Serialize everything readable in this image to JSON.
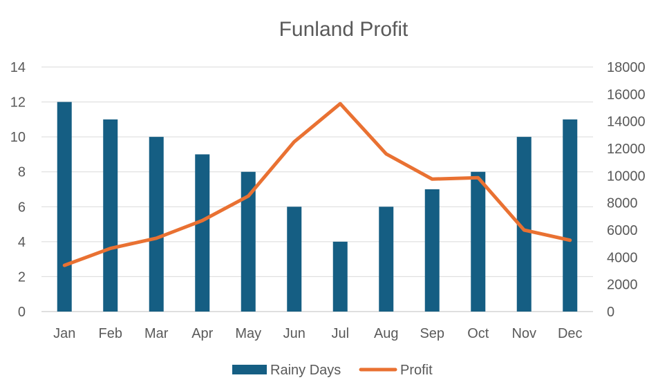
{
  "chart_data": {
    "type": "bar+line",
    "title": "Funland Profit",
    "categories": [
      "Jan",
      "Feb",
      "Mar",
      "Apr",
      "May",
      "Jun",
      "Jul",
      "Aug",
      "Sep",
      "Oct",
      "Nov",
      "Dec"
    ],
    "series": [
      {
        "name": "Rainy Days",
        "type": "bar",
        "axis": "left",
        "color": "#155E83",
        "values": [
          12,
          11,
          10,
          9,
          8,
          6,
          4,
          6,
          7,
          8,
          10,
          11
        ]
      },
      {
        "name": "Profit",
        "type": "line",
        "axis": "right",
        "color": "#E97132",
        "values": [
          3400,
          4650,
          5400,
          6700,
          8500,
          12500,
          15300,
          11600,
          9750,
          9850,
          6000,
          5250
        ]
      }
    ],
    "y_left": {
      "min": 0,
      "max": 14,
      "ticks": [
        0,
        2,
        4,
        6,
        8,
        10,
        12,
        14
      ]
    },
    "y_right": {
      "min": 0,
      "max": 18000,
      "ticks": [
        0,
        2000,
        4000,
        6000,
        8000,
        10000,
        12000,
        14000,
        16000,
        18000
      ]
    },
    "grid": true,
    "legend_position": "bottom"
  }
}
